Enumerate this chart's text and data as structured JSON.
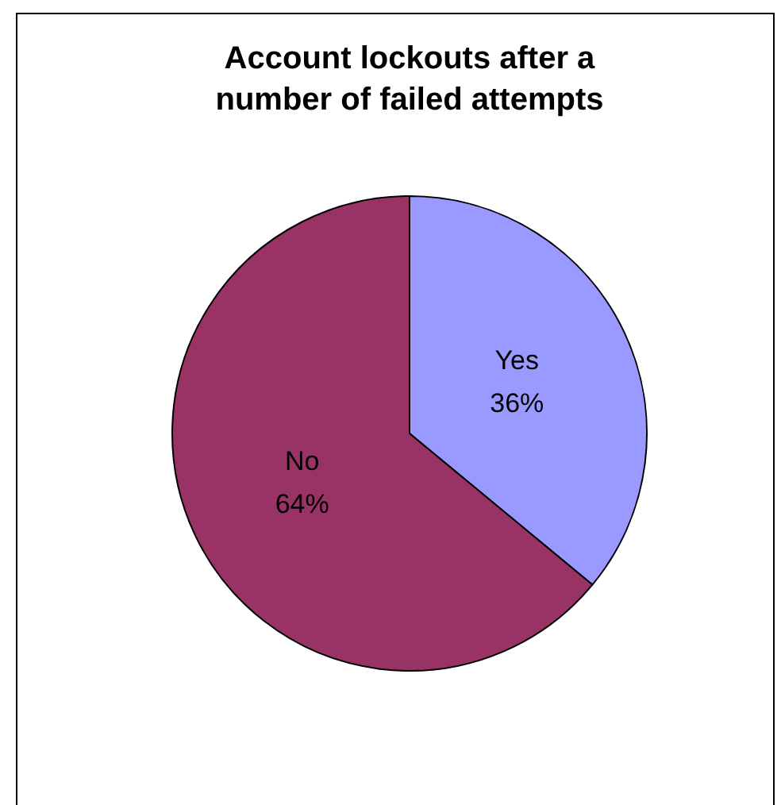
{
  "chart_data": {
    "type": "pie",
    "title": "Account lockouts after a number of failed attempts",
    "categories": [
      "Yes",
      "No"
    ],
    "values": [
      36,
      64
    ],
    "colors": [
      "#9999ff",
      "#993366"
    ],
    "value_labels": [
      "36%",
      "64%"
    ],
    "legend": false
  }
}
